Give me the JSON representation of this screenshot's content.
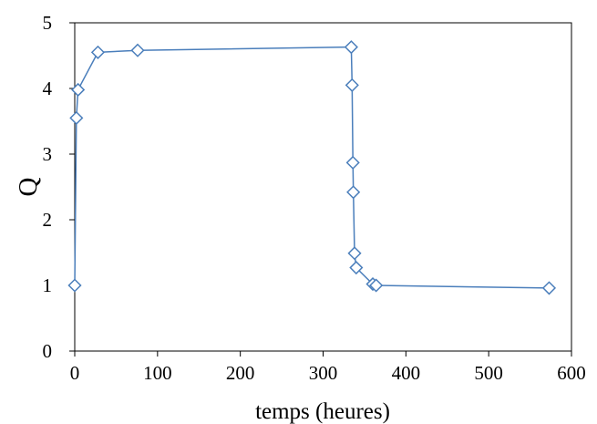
{
  "chart_data": {
    "type": "scatter",
    "title": "",
    "xlabel": "temps (heures)",
    "ylabel": "Q",
    "xlim": [
      0,
      600
    ],
    "ylim": [
      0,
      5
    ],
    "xticks": [
      0,
      100,
      200,
      300,
      400,
      500,
      600
    ],
    "yticks": [
      0,
      1,
      2,
      3,
      4,
      5
    ],
    "grid": false,
    "legend": "none",
    "line_color": "#4a7ebb",
    "marker": "diamond-open",
    "series": [
      {
        "x": [
          0,
          2,
          4,
          28,
          76,
          334,
          335,
          336,
          336.5,
          338,
          340,
          360,
          364,
          573
        ],
        "y": [
          1.0,
          3.55,
          3.98,
          4.55,
          4.58,
          4.63,
          4.05,
          2.87,
          2.42,
          1.49,
          1.27,
          1.02,
          1.0,
          0.96
        ]
      }
    ]
  }
}
